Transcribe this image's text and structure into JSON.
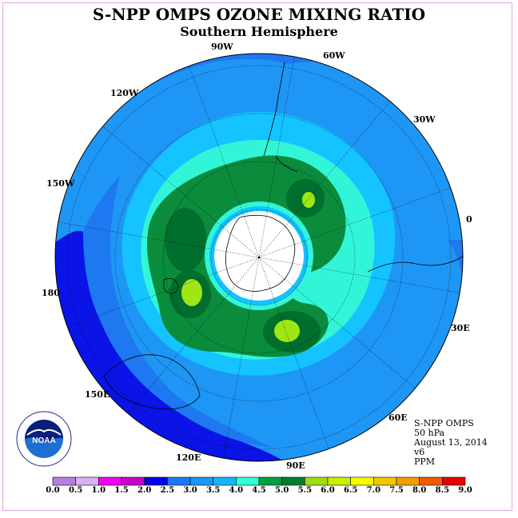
{
  "title": "S-NPP OMPS OZONE MIXING RATIO",
  "subtitle": "Southern Hemisphere",
  "longitude_labels": [
    "90W",
    "60W",
    "30W",
    "0",
    "30E",
    "60E",
    "90E",
    "120E",
    "150E",
    "180",
    "150W",
    "120W"
  ],
  "info": {
    "instrument": "S-NPP OMPS",
    "level": "50 hPa",
    "date": "August 13, 2014",
    "version": "v6",
    "units": "PPM"
  },
  "logo": {
    "text": "NOAA",
    "ring_text": "NATIONAL OCEANIC AND ATMOSPHERIC ADMINISTRATION U.S. DEPARTMENT OF COMMERCE"
  },
  "colorbar": {
    "ticks": [
      "0.0",
      "0.5",
      "1.0",
      "1.5",
      "2.0",
      "2.5",
      "3.0",
      "3.5",
      "4.0",
      "4.5",
      "5.0",
      "5.5",
      "6.0",
      "6.5",
      "7.0",
      "7.5",
      "8.0",
      "8.5",
      "9.0"
    ],
    "colors": [
      "#b57ee0",
      "#dab2f0",
      "#f000f0",
      "#c800c8",
      "#0000e6",
      "#1e78f0",
      "#1e96f5",
      "#14b4ff",
      "#32ffd2",
      "#00a03c",
      "#007d32",
      "#a0dc14",
      "#c8f000",
      "#fafa00",
      "#f0c800",
      "#f0a000",
      "#f05a00",
      "#e60000",
      "#8c5a3c"
    ]
  },
  "field_colors": {
    "level_2_0": "#0a14e6",
    "level_2_5": "#1e78f0",
    "level_3_0": "#1e96f5",
    "level_3_5": "#14c3ff",
    "level_4_0": "#32f5d8",
    "level_4_5": "#0a8c3c",
    "level_5_0": "#006e2d",
    "level_5_5": "#a0e614",
    "polar_night": "#ffffff"
  }
}
